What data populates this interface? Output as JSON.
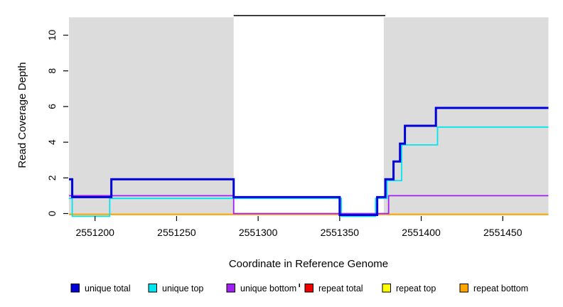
{
  "chart_data": {
    "type": "line",
    "subtype": "step",
    "title": "",
    "xlabel": "Coordinate in Reference Genome",
    "ylabel": "Read Coverage Depth",
    "xlim": [
      2551184,
      2551478
    ],
    "ylim": [
      0,
      11.3
    ],
    "x_ticks": [
      2551200,
      2551250,
      2551300,
      2551350,
      2551400,
      2551450
    ],
    "y_ticks": [
      0,
      2,
      4,
      6,
      8,
      10
    ],
    "grid": "off",
    "legend_position": "bottom",
    "background_shading": {
      "color": "#DCDCDC",
      "regions": [
        {
          "from": 2551184,
          "to": 2551285
        },
        {
          "from": 2551377,
          "to": 2551478
        }
      ]
    },
    "annotation_line": {
      "color": "#000000",
      "depth": 11.1,
      "from": 2551285,
      "to": 2551378
    },
    "series": [
      {
        "name": "unique total",
        "color": "#0000D8",
        "steps": [
          [
            2551184,
            2
          ],
          [
            2551186,
            1
          ],
          [
            2551210,
            2
          ],
          [
            2551285,
            1
          ],
          [
            2551350,
            0
          ],
          [
            2551373,
            1
          ],
          [
            2551378,
            2
          ],
          [
            2551383,
            3
          ],
          [
            2551387,
            4
          ],
          [
            2551390,
            5
          ],
          [
            2551409,
            6
          ],
          [
            2551478,
            6
          ]
        ]
      },
      {
        "name": "unique top",
        "color": "#00E5EE",
        "steps": [
          [
            2551184,
            1
          ],
          [
            2551186,
            0
          ],
          [
            2551209,
            1
          ],
          [
            2551351,
            0
          ],
          [
            2551372,
            1
          ],
          [
            2551379,
            2
          ],
          [
            2551388,
            4
          ],
          [
            2551410,
            5
          ],
          [
            2551478,
            5
          ]
        ]
      },
      {
        "name": "unique bottom",
        "color": "#A020F0",
        "steps": [
          [
            2551184,
            1
          ],
          [
            2551285,
            0
          ],
          [
            2551380,
            1
          ],
          [
            2551478,
            1
          ]
        ]
      },
      {
        "name": "repeat total",
        "color": "#EE0000",
        "steps": [
          [
            2551184,
            0
          ],
          [
            2551478,
            0
          ]
        ]
      },
      {
        "name": "repeat top",
        "color": "#FFFF00",
        "steps": [
          [
            2551184,
            0
          ],
          [
            2551478,
            0
          ]
        ]
      },
      {
        "name": "repeat bottom",
        "color": "#FFA500",
        "steps": [
          [
            2551184,
            0
          ],
          [
            2551478,
            0
          ]
        ]
      }
    ]
  }
}
